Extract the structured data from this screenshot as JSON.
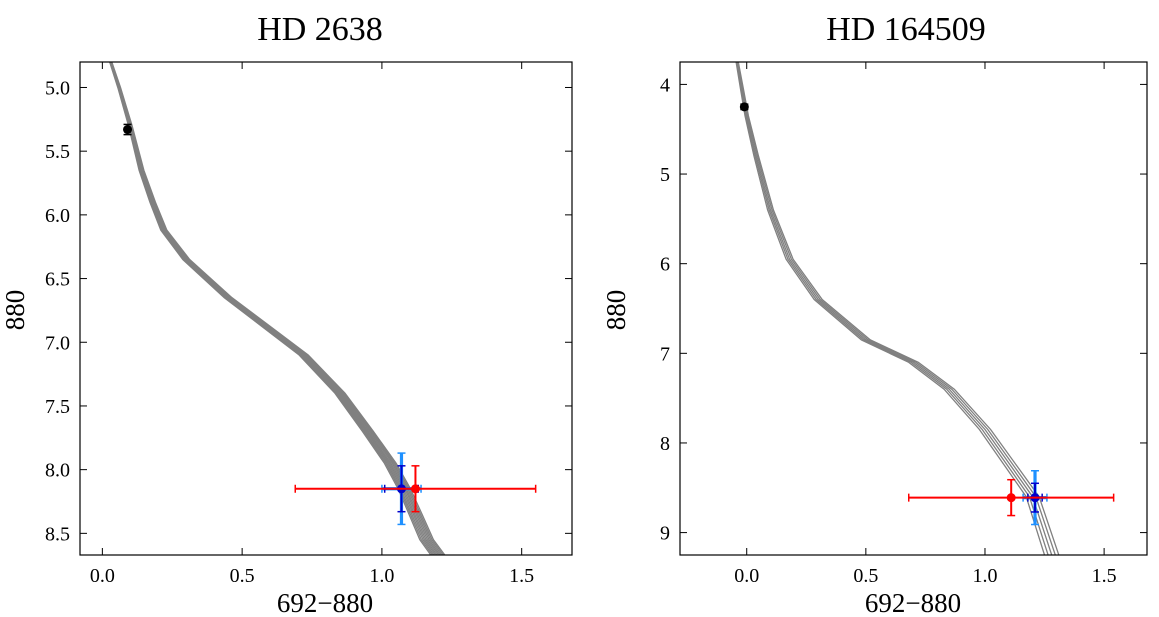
{
  "chart_data": [
    {
      "type": "scatter",
      "title": "HD 2638",
      "xlabel": "692−880",
      "ylabel": "880",
      "xlim": [
        -0.08,
        1.68
      ],
      "ylim": [
        8.67,
        4.8
      ],
      "y_inverted": true,
      "xticks": [
        0.0,
        0.5,
        1.0,
        1.5
      ],
      "xtick_labels": [
        "0.0",
        "0.5",
        "1.0",
        "1.5"
      ],
      "yticks": [
        5.0,
        5.5,
        6.0,
        6.5,
        7.0,
        7.5,
        8.0,
        8.5
      ],
      "ytick_labels": [
        "5.0",
        "5.5",
        "6.0",
        "6.5",
        "7.0",
        "7.5",
        "8.0",
        "8.5"
      ],
      "grid": false,
      "isochrone_color": "#808080",
      "isochrones": {
        "count": 10,
        "base_track": [
          [
            0.03,
            4.8
          ],
          [
            0.06,
            5.0
          ],
          [
            0.1,
            5.3
          ],
          [
            0.14,
            5.65
          ],
          [
            0.18,
            5.9
          ],
          [
            0.22,
            6.12
          ],
          [
            0.3,
            6.35
          ],
          [
            0.45,
            6.65
          ],
          [
            0.6,
            6.9
          ],
          [
            0.72,
            7.1
          ],
          [
            0.85,
            7.4
          ],
          [
            0.95,
            7.7
          ],
          [
            1.03,
            7.95
          ],
          [
            1.08,
            8.15
          ],
          [
            1.12,
            8.35
          ],
          [
            1.16,
            8.55
          ],
          [
            1.2,
            8.67
          ]
        ],
        "x_spread": 0.05
      },
      "points": [
        {
          "label": "primary",
          "x": 0.09,
          "y": 5.33,
          "xerr": 0.0,
          "yerr": 0.04,
          "color": "#000000"
        },
        {
          "label": "companion-blue",
          "x": 1.07,
          "y": 8.15,
          "xerr": 0.07,
          "yerr": 0.28,
          "color": "#1e90ff"
        },
        {
          "label": "companion-navy",
          "x": 1.07,
          "y": 8.15,
          "xerr": 0.06,
          "yerr": 0.18,
          "color": "#0000cc"
        },
        {
          "label": "companion-red",
          "x": 1.12,
          "y": 8.15,
          "xerr": 0.43,
          "yerr": 0.18,
          "color": "#ff0000"
        }
      ]
    },
    {
      "type": "scatter",
      "title": "HD 164509",
      "xlabel": "692−880",
      "ylabel": "880",
      "xlim": [
        -0.28,
        1.68
      ],
      "ylim": [
        9.25,
        3.75
      ],
      "y_inverted": true,
      "xticks": [
        0.0,
        0.5,
        1.0,
        1.5
      ],
      "xtick_labels": [
        "0.0",
        "0.5",
        "1.0",
        "1.5"
      ],
      "yticks": [
        4,
        5,
        6,
        7,
        8,
        9
      ],
      "ytick_labels": [
        "4",
        "5",
        "6",
        "7",
        "8",
        "9"
      ],
      "grid": false,
      "isochrone_color": "#808080",
      "isochrones": {
        "count": 5,
        "base_track": [
          [
            -0.04,
            3.75
          ],
          [
            -0.02,
            4.05
          ],
          [
            0.0,
            4.35
          ],
          [
            0.04,
            4.8
          ],
          [
            0.1,
            5.4
          ],
          [
            0.18,
            5.95
          ],
          [
            0.3,
            6.4
          ],
          [
            0.5,
            6.85
          ],
          [
            0.7,
            7.1
          ],
          [
            0.85,
            7.4
          ],
          [
            1.0,
            7.85
          ],
          [
            1.12,
            8.3
          ],
          [
            1.2,
            8.6
          ],
          [
            1.28,
            9.25
          ]
        ],
        "x_spread": 0.06
      },
      "points": [
        {
          "label": "primary",
          "x": -0.01,
          "y": 4.25,
          "xerr": 0.0,
          "yerr": 0.03,
          "color": "#000000"
        },
        {
          "label": "companion-blue",
          "x": 1.21,
          "y": 8.61,
          "xerr": 0.05,
          "yerr": 0.3,
          "color": "#1e90ff"
        },
        {
          "label": "companion-navy",
          "x": 1.21,
          "y": 8.61,
          "xerr": 0.03,
          "yerr": 0.16,
          "color": "#0000cc"
        },
        {
          "label": "companion-red",
          "x": 1.11,
          "y": 8.61,
          "xerr": 0.43,
          "yerr": 0.2,
          "color": "#ff0000"
        }
      ]
    }
  ]
}
